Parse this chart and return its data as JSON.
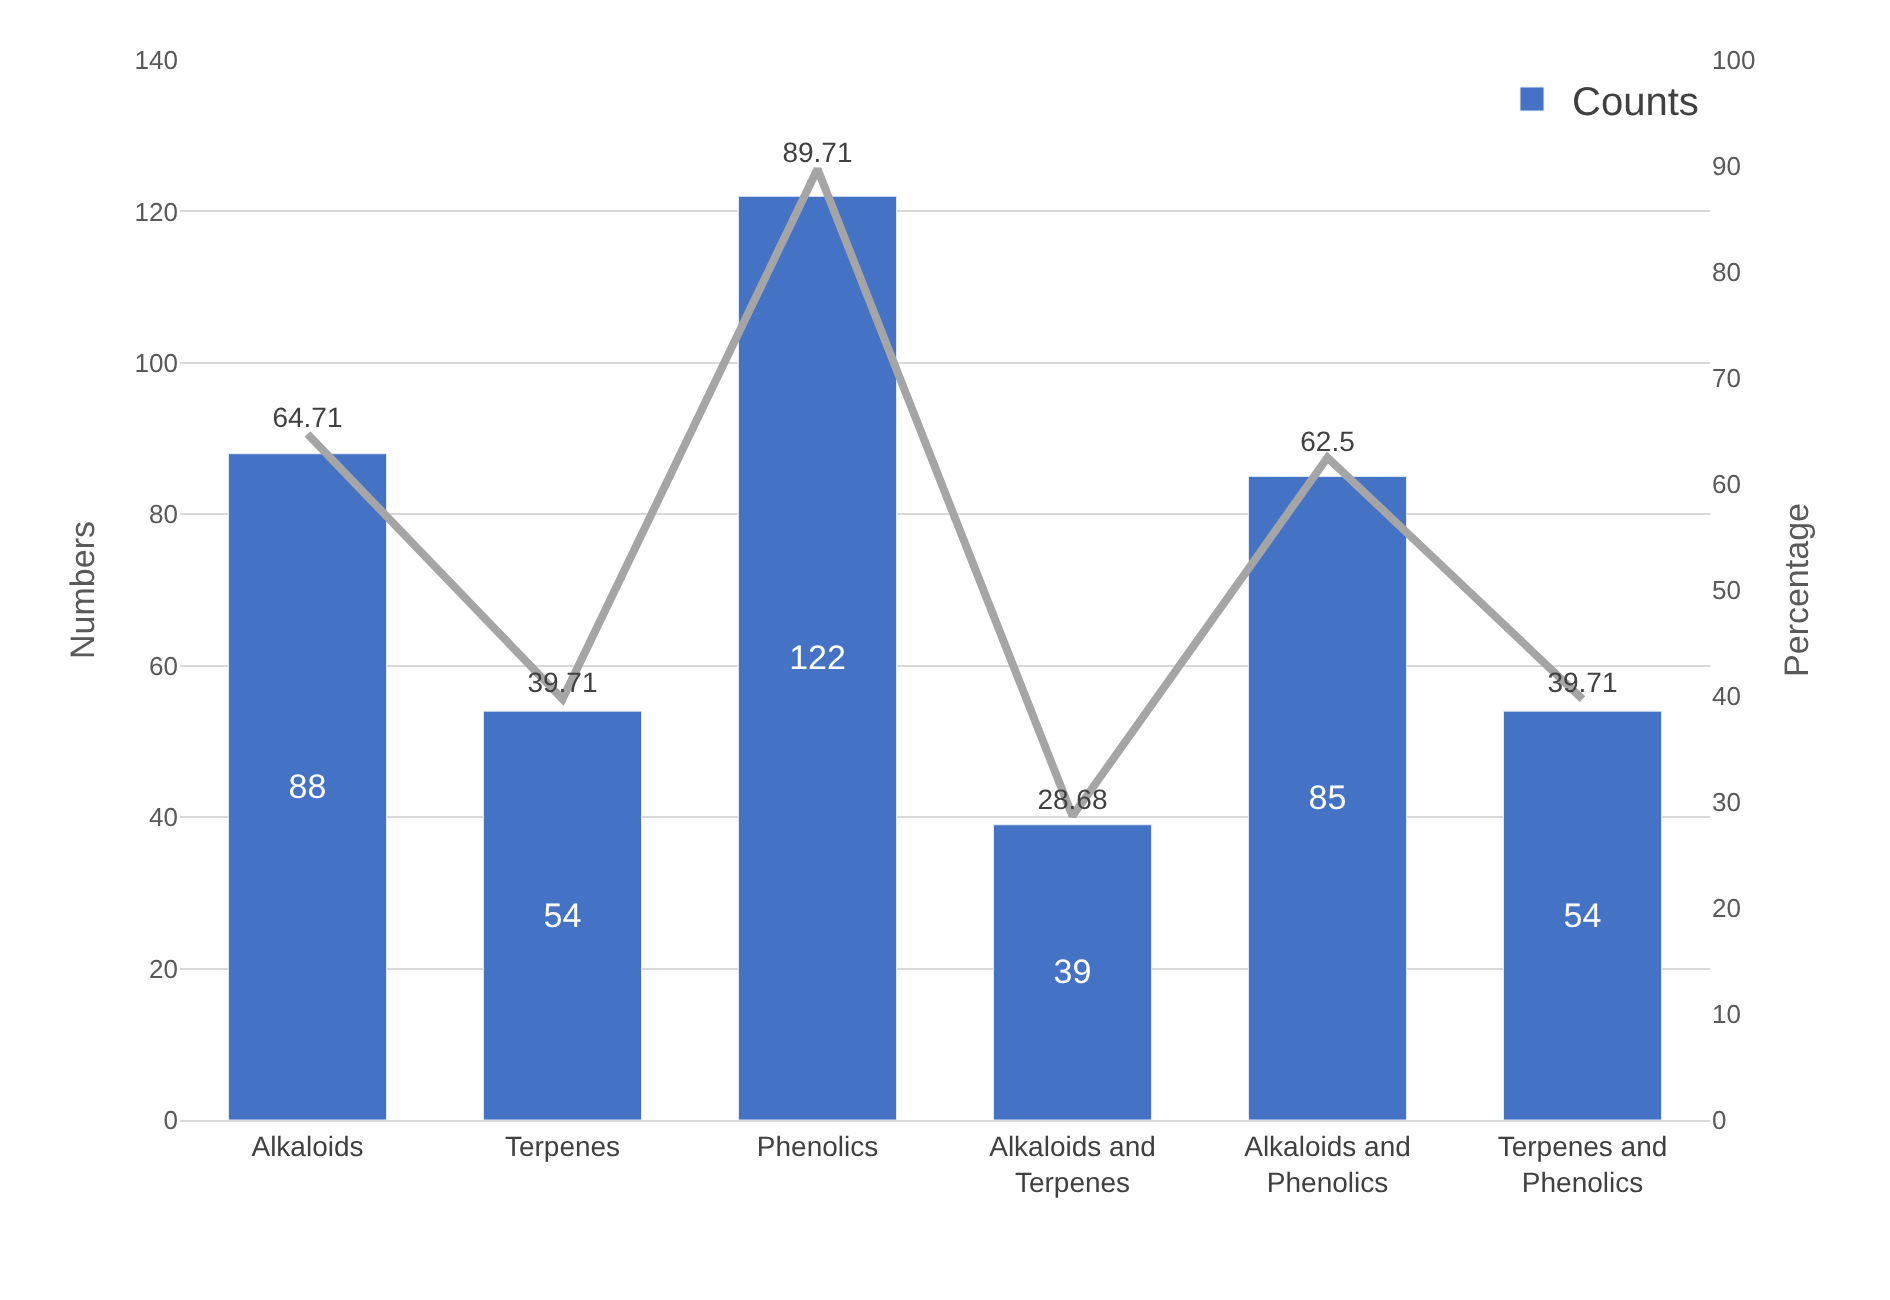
{
  "chart_data": {
    "type": "bar",
    "categories": [
      "Alkaloids",
      "Terpenes",
      "Phenolics",
      "Alkaloids and Terpenes",
      "Alkaloids and Phenolics",
      "Terpenes and Phenolics"
    ],
    "series": [
      {
        "name": "Counts",
        "color": "#4472c4",
        "values": [
          88,
          54,
          122,
          39,
          85,
          54
        ]
      },
      {
        "type": "line",
        "axis": "y2",
        "color": "#a5a5a5",
        "values": [
          64.71,
          39.71,
          89.71,
          28.68,
          62.5,
          39.71
        ]
      }
    ],
    "ylabel": "Numbers",
    "y2label": "Percentage",
    "ylim": [
      0,
      140
    ],
    "yticks": [
      0,
      20,
      40,
      60,
      80,
      100,
      120,
      140
    ],
    "y2lim": [
      0,
      100
    ],
    "y2ticks": [
      0,
      10,
      20,
      30,
      40,
      50,
      60,
      70,
      80,
      90,
      100
    ],
    "grid": "y",
    "legend": "top right",
    "data_labels": true,
    "marker": "none"
  }
}
